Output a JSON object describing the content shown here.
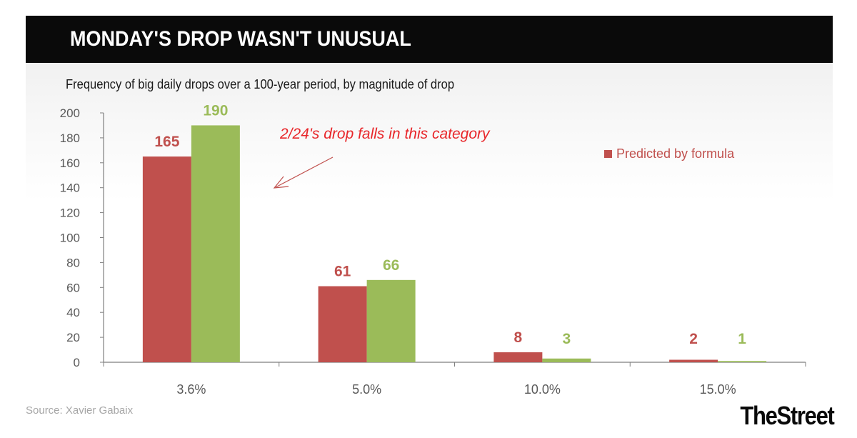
{
  "header": {
    "title": "MONDAY'S DROP WASN'T UNUSUAL"
  },
  "footer": {
    "source": "Source: Xavier Gabaix",
    "brand": "TheStreet"
  },
  "colors": {
    "predicted": "#c0504d",
    "actual": "#9bbb59",
    "annotation": "#e8262a"
  },
  "chart_data": {
    "type": "bar",
    "title": "",
    "subtitle": "Frequency of big daily drops over a 100-year period, by magnitude of drop",
    "xlabel": "",
    "ylabel": "",
    "categories": [
      "3.6%",
      "5.0%",
      "10.0%",
      "15.0%"
    ],
    "series": [
      {
        "name": "Predicted by formula",
        "values": [
          165,
          61,
          8,
          2
        ]
      },
      {
        "values": [
          190,
          66,
          3,
          1
        ]
      }
    ],
    "ylim": [
      0,
      200
    ],
    "yticks": [
      0,
      20,
      40,
      60,
      80,
      100,
      120,
      140,
      160,
      180,
      200
    ],
    "data_labels": true,
    "grid": false,
    "legend": {
      "position": "right",
      "entries": [
        "Predicted by formula"
      ]
    },
    "annotation": {
      "text": "2/24's drop falls in this category",
      "target_category": "3.6%"
    }
  }
}
